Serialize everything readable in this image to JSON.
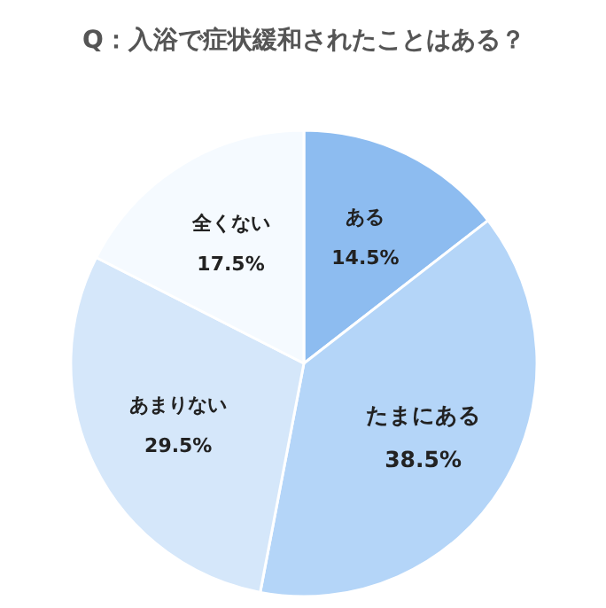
{
  "chart_data": {
    "type": "pie",
    "title": "Q：入浴で症状緩和されたことはある？",
    "categories": [
      "ある",
      "たまにある",
      "あまりない",
      "全くない"
    ],
    "values": [
      14.5,
      38.5,
      29.5,
      17.5
    ],
    "value_labels": [
      "14.5%",
      "38.5%",
      "29.5%",
      "17.5%"
    ],
    "colors": [
      "#8dbcf0",
      "#b4d5f8",
      "#d5e7fa",
      "#f5faff"
    ]
  }
}
